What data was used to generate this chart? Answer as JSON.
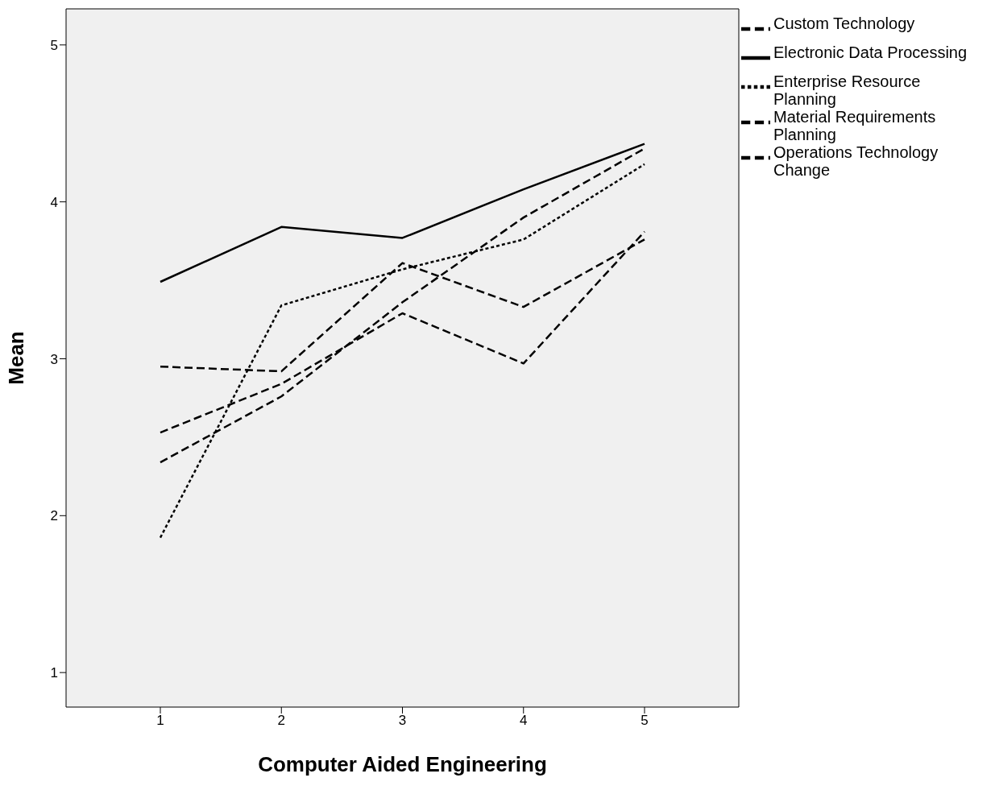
{
  "chart_data": {
    "type": "line",
    "xlabel": "Computer Aided Engineering",
    "ylabel": "Mean",
    "categories": [
      "1",
      "2",
      "3",
      "4",
      "5"
    ],
    "series": [
      {
        "name": "Custom Technology",
        "color": "#000000",
        "line_style": "dashed",
        "values": [
          2.53,
          2.84,
          3.29,
          2.97,
          3.81
        ]
      },
      {
        "name": "Electronic Data Processing",
        "color": "#000000",
        "line_style": "solid",
        "values": [
          3.49,
          3.84,
          3.77,
          4.08,
          4.37
        ]
      },
      {
        "name": "Enterprise Resource Planning",
        "color": "#000000",
        "line_style": "dotted",
        "values": [
          1.86,
          3.34,
          3.57,
          3.76,
          4.24
        ]
      },
      {
        "name": "Material Requirements Planning",
        "color": "#000000",
        "line_style": "dashed",
        "values": [
          2.34,
          2.76,
          3.36,
          3.9,
          4.34
        ]
      },
      {
        "name": "Operations Technology Change",
        "color": "#000000",
        "line_style": "dashed",
        "values": [
          2.95,
          2.92,
          3.61,
          3.33,
          3.76
        ]
      }
    ],
    "ylim": [
      0.78,
      5.23
    ],
    "yticks": [
      1,
      2,
      3,
      4,
      5
    ],
    "grid": false,
    "legend": "top right",
    "marker": "none"
  }
}
